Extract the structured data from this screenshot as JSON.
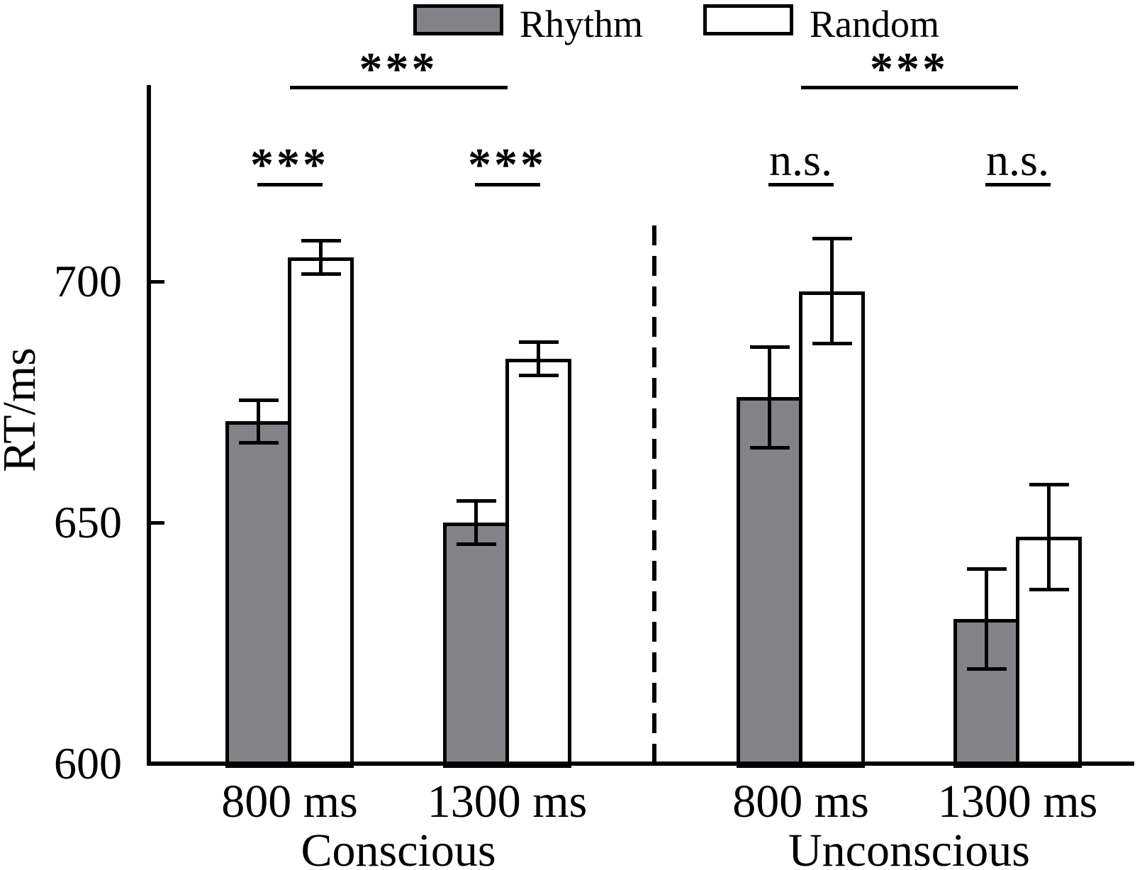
{
  "figure": {
    "y_axis_label": "RT/ms"
  },
  "legend": {
    "items": [
      {
        "label": "Rhythm",
        "fill": "#838387"
      },
      {
        "label": "Random",
        "fill": "#ffffff"
      }
    ]
  },
  "chart_data": {
    "type": "bar",
    "title": "",
    "xlabel": "",
    "ylabel": "RT/ms",
    "ylim": [
      600,
      750
    ],
    "yticks": [
      600,
      650,
      700
    ],
    "grid": false,
    "legend_position": "top",
    "series_names": [
      "Rhythm",
      "Random"
    ],
    "groups": [
      {
        "label": "Conscious",
        "between_conditions_significance": "***",
        "conditions": [
          {
            "label": "800 ms",
            "pair_significance": "***",
            "values": {
              "Rhythm": 671,
              "Random": 705
            },
            "errors": {
              "Rhythm": 4.5,
              "Random": 3.5
            }
          },
          {
            "label": "1300 ms",
            "pair_significance": "***",
            "values": {
              "Rhythm": 650,
              "Random": 684
            },
            "errors": {
              "Rhythm": 4.5,
              "Random": 3.5
            }
          }
        ]
      },
      {
        "label": "Unconscious",
        "between_conditions_significance": "***",
        "conditions": [
          {
            "label": "800 ms",
            "pair_significance": "n.s.",
            "values": {
              "Rhythm": 676,
              "Random": 698
            },
            "errors": {
              "Rhythm": 10.5,
              "Random": 11
            }
          },
          {
            "label": "1300 ms",
            "pair_significance": "n.s.",
            "values": {
              "Rhythm": 630,
              "Random": 647
            },
            "errors": {
              "Rhythm": 10.5,
              "Random": 11
            }
          }
        ]
      }
    ]
  }
}
